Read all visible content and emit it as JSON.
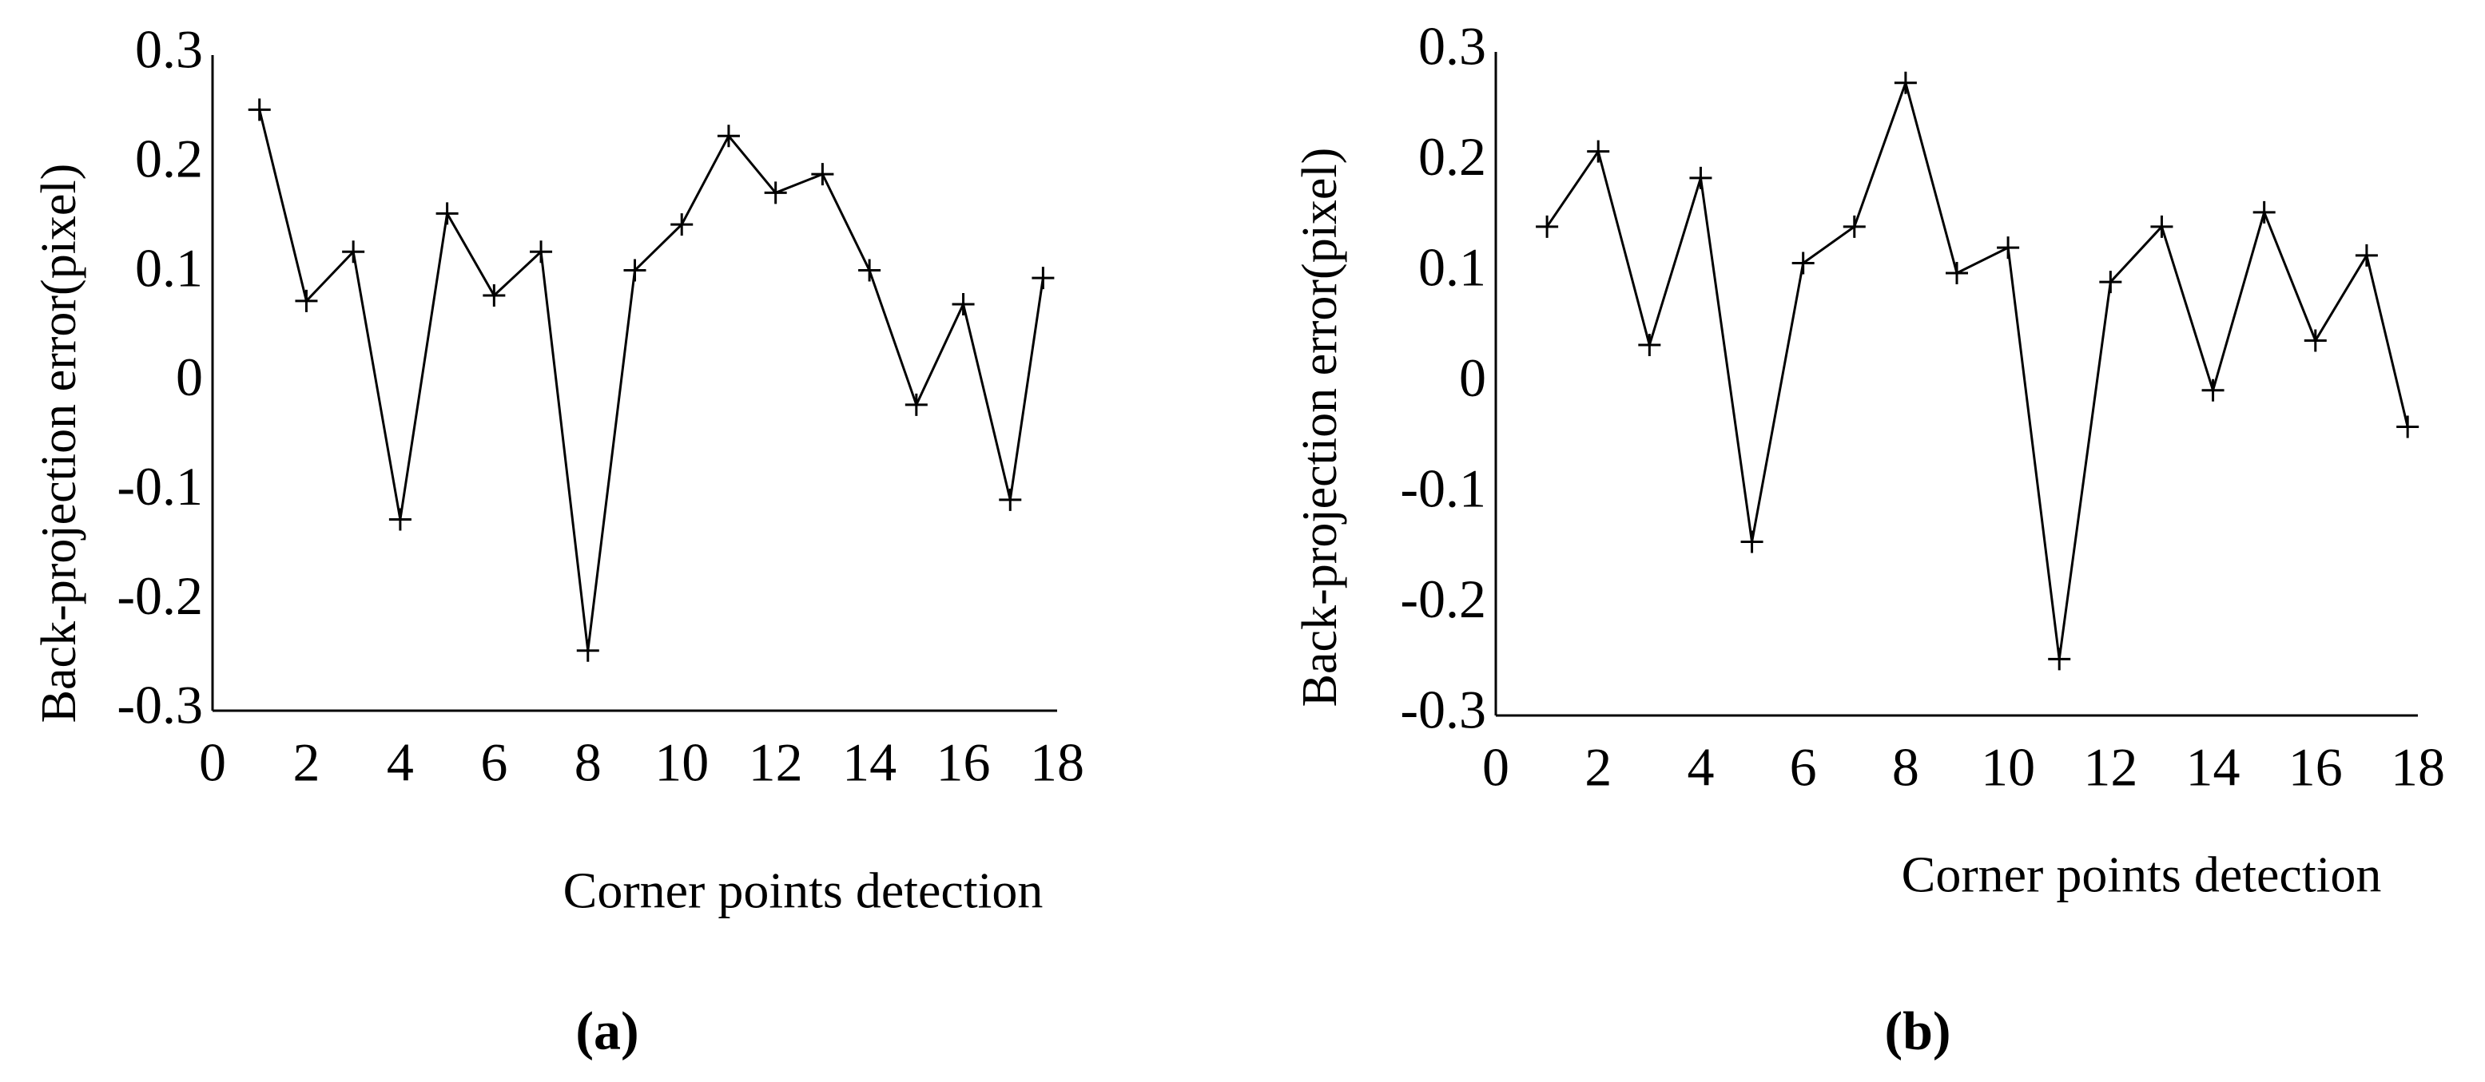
{
  "chart_data": [
    {
      "type": "line",
      "ylabel": "Back-projection error(pixel)",
      "xlabel": "Corner points detection",
      "caption": "(a)",
      "x": [
        1,
        2,
        3,
        4,
        5,
        6,
        7,
        8,
        9,
        10,
        11,
        12,
        13,
        14,
        15,
        16,
        17,
        17.7
      ],
      "values": [
        0.25,
        0.075,
        0.12,
        -0.125,
        0.155,
        0.08,
        0.12,
        -0.245,
        0.103,
        0.145,
        0.226,
        0.174,
        0.191,
        0.103,
        -0.02,
        0.072,
        -0.107,
        0.096
      ],
      "color": "#000000",
      "xlim": [
        0,
        18
      ],
      "xticks": [
        0,
        2,
        4,
        6,
        8,
        10,
        12,
        14,
        16,
        18
      ],
      "ylim": [
        -0.3,
        0.3
      ],
      "yticks": [
        -0.3,
        -0.2,
        -0.1,
        0,
        0.1,
        0.2,
        0.3
      ]
    },
    {
      "type": "line",
      "ylabel": "Back-projection error(pixel)",
      "xlabel": "Corner points detection",
      "caption": "(b)",
      "x": [
        1,
        2,
        3,
        4,
        5,
        6,
        7,
        8,
        9,
        10,
        11,
        12,
        13,
        14,
        15,
        16,
        17,
        17.8
      ],
      "values": [
        0.142,
        0.21,
        0.035,
        0.186,
        -0.143,
        0.109,
        0.142,
        0.272,
        0.1,
        0.123,
        -0.249,
        0.092,
        0.142,
        -0.006,
        0.155,
        0.039,
        0.116,
        -0.039
      ],
      "color": "#000000",
      "xlim": [
        0,
        18
      ],
      "xticks": [
        0,
        2,
        4,
        6,
        8,
        10,
        12,
        14,
        16,
        18
      ],
      "ylim": [
        -0.3,
        0.3
      ],
      "yticks": [
        -0.3,
        -0.2,
        -0.1,
        0,
        0.1,
        0.2,
        0.3
      ]
    }
  ]
}
